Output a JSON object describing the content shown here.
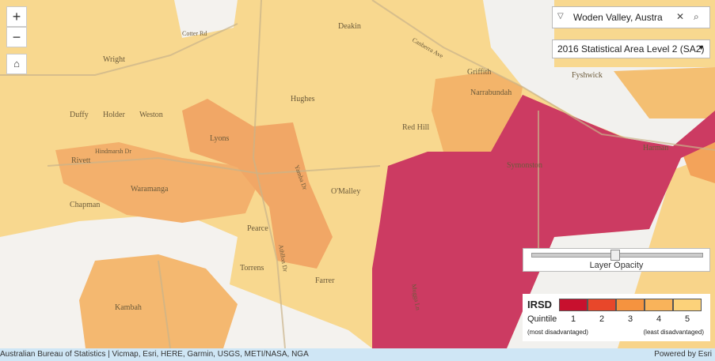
{
  "search": {
    "text": "Woden Valley, Austra"
  },
  "layer_select": {
    "text": "2016 Statistical Area Level 2 (SA2)"
  },
  "map": {
    "places": [
      "Wright",
      "Duffy",
      "Holder",
      "Weston",
      "Rivett",
      "Chapman",
      "Waramanga",
      "Lyons",
      "Hughes",
      "Deakin",
      "Red Hill",
      "Griffith",
      "Narrabundah",
      "Fyshwick",
      "Symonston",
      "Harman",
      "O'Malley",
      "Pearce",
      "Torrens",
      "Farrer",
      "Kambah"
    ],
    "roads": [
      "Cotter Rd",
      "Canberra Ave",
      "Hindmarsh Dr",
      "Yamba Dr",
      "Athllon Dr",
      "Mugga Ln"
    ]
  },
  "opacity": {
    "label": "Layer Opacity"
  },
  "legend": {
    "title": "IRSD",
    "subtitle": "Quintile",
    "low_note": "(most disadvantaged)",
    "high_note": "(least disadvantaged)",
    "items": [
      {
        "label": "1",
        "color": "#c8102e"
      },
      {
        "label": "2",
        "color": "#e8472a"
      },
      {
        "label": "3",
        "color": "#f5933f"
      },
      {
        "label": "4",
        "color": "#f9b35a"
      },
      {
        "label": "5",
        "color": "#fcd27a"
      }
    ]
  },
  "attribution": {
    "sources": "Australian Bureau of Statistics | Vicmap, Esri, HERE, Garmin, USGS, METI/NASA, NGA",
    "powered": "Powered by Esri"
  }
}
